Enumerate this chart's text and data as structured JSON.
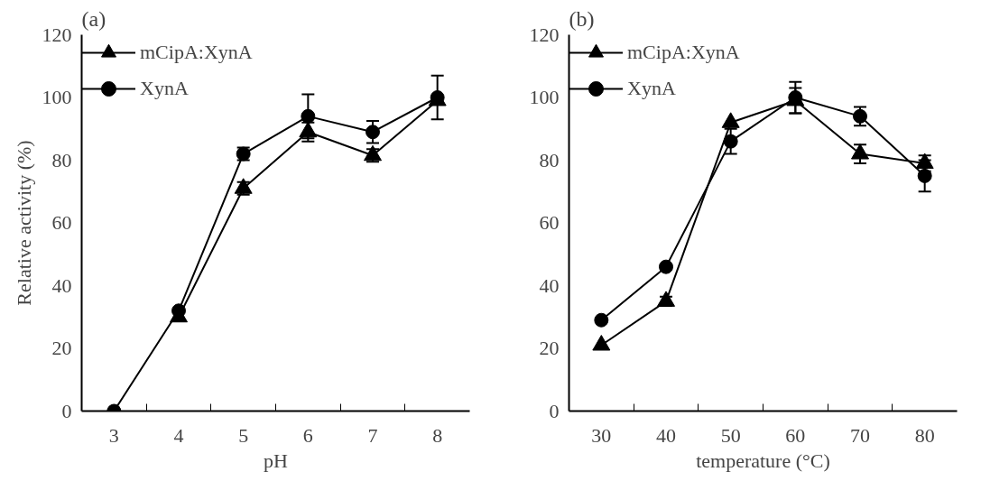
{
  "chart_data": [
    {
      "type": "line",
      "title": "(a)",
      "xlabel": "pH",
      "ylabel": "Relative activity (%)",
      "categories": [
        "3",
        "4",
        "5",
        "6",
        "7",
        "8"
      ],
      "ylim": [
        0,
        120
      ],
      "yticks": [
        0,
        20,
        40,
        60,
        80,
        100,
        120
      ],
      "grid": false,
      "legend": "top left",
      "series": [
        {
          "name": "mCipA:XynA",
          "color": "#000000",
          "marker": "triangle",
          "values": [
            null,
            30,
            71,
            89,
            81.5,
            99
          ],
          "errors": [
            null,
            null,
            2,
            3,
            2,
            null
          ]
        },
        {
          "name": "XynA",
          "color": "#000000",
          "marker": "circle",
          "values": [
            0,
            32,
            82,
            94,
            89,
            100
          ],
          "errors": [
            null,
            null,
            2,
            7,
            3.5,
            7
          ]
        }
      ]
    },
    {
      "type": "line",
      "title": "(b)",
      "xlabel": "temperature (°C)",
      "categories": [
        "30",
        "40",
        "50",
        "60",
        "70",
        "80"
      ],
      "ylim": [
        0,
        120
      ],
      "yticks": [
        0,
        20,
        40,
        60,
        80,
        100,
        120
      ],
      "grid": false,
      "legend": "top left",
      "series": [
        {
          "name": "mCipA:XynA",
          "color": "#000000",
          "marker": "triangle",
          "values": [
            21,
            35,
            92,
            99,
            82,
            79
          ],
          "errors": [
            null,
            1.5,
            null,
            4,
            3,
            2.5
          ]
        },
        {
          "name": "XynA",
          "color": "#000000",
          "marker": "circle",
          "values": [
            29,
            46,
            86,
            100,
            94,
            75
          ],
          "errors": [
            null,
            null,
            4,
            5,
            3,
            5
          ]
        }
      ]
    }
  ]
}
